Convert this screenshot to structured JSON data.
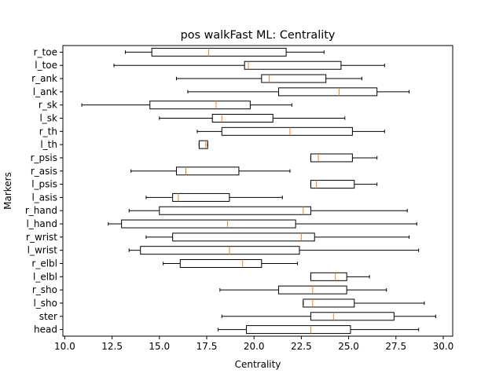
{
  "chart_data": {
    "type": "boxplot",
    "orientation": "horizontal",
    "title": "pos walkFast ML: Centrality",
    "xlabel": "Centrality",
    "ylabel": "Markers",
    "xlim": [
      9.9,
      30.5
    ],
    "xticks": [
      10.0,
      12.5,
      15.0,
      17.5,
      20.0,
      22.5,
      25.0,
      27.5,
      30.0
    ],
    "xtick_labels": [
      "10.0",
      "12.5",
      "15.0",
      "17.5",
      "20.0",
      "22.5",
      "25.0",
      "27.5",
      "30.0"
    ],
    "grid": false,
    "colors": {
      "box": "#000000",
      "median": "#ff7f0e"
    },
    "categories": [
      "head",
      "ster",
      "l_sho",
      "r_sho",
      "l_elbl",
      "r_elbl",
      "l_wrist",
      "r_wrist",
      "l_hand",
      "r_hand",
      "l_asis",
      "l_psis",
      "r_asis",
      "r_psis",
      "l_th",
      "r_th",
      "l_sk",
      "r_sk",
      "l_ank",
      "r_ank",
      "l_toe",
      "r_toe"
    ],
    "boxes": [
      {
        "label": "head",
        "whislo": 18.1,
        "q1": 19.6,
        "med": 23.0,
        "q3": 25.1,
        "whishi": 28.7
      },
      {
        "label": "ster",
        "whislo": 18.3,
        "q1": 23.0,
        "med": 24.2,
        "q3": 27.4,
        "whishi": 29.6
      },
      {
        "label": "l_sho",
        "whislo": 22.6,
        "q1": 22.6,
        "med": 23.1,
        "q3": 25.3,
        "whishi": 29.0
      },
      {
        "label": "r_sho",
        "whislo": 18.2,
        "q1": 21.3,
        "med": 23.1,
        "q3": 24.9,
        "whishi": 27.0
      },
      {
        "label": "l_elbl",
        "whislo": 23.0,
        "q1": 23.0,
        "med": 24.3,
        "q3": 24.9,
        "whishi": 26.1
      },
      {
        "label": "r_elbl",
        "whislo": 15.2,
        "q1": 16.1,
        "med": 19.4,
        "q3": 20.4,
        "whishi": 22.3
      },
      {
        "label": "l_wrist",
        "whislo": 13.4,
        "q1": 14.0,
        "med": 18.7,
        "q3": 22.4,
        "whishi": 28.7
      },
      {
        "label": "r_wrist",
        "whislo": 14.3,
        "q1": 15.7,
        "med": 22.5,
        "q3": 23.2,
        "whishi": 28.2
      },
      {
        "label": "l_hand",
        "whislo": 12.3,
        "q1": 13.0,
        "med": 18.6,
        "q3": 22.2,
        "whishi": 28.6
      },
      {
        "label": "r_hand",
        "whislo": 13.4,
        "q1": 15.0,
        "med": 22.6,
        "q3": 23.0,
        "whishi": 28.1
      },
      {
        "label": "l_asis",
        "whislo": 14.3,
        "q1": 15.7,
        "med": 16.0,
        "q3": 18.7,
        "whishi": 21.5
      },
      {
        "label": "l_psis",
        "whislo": 23.0,
        "q1": 23.0,
        "med": 23.3,
        "q3": 25.3,
        "whishi": 26.5
      },
      {
        "label": "r_asis",
        "whislo": 13.5,
        "q1": 15.9,
        "med": 16.4,
        "q3": 19.2,
        "whishi": 21.9
      },
      {
        "label": "r_psis",
        "whislo": 23.0,
        "q1": 23.0,
        "med": 23.4,
        "q3": 25.2,
        "whishi": 26.5
      },
      {
        "label": "l_th",
        "whislo": 17.1,
        "q1": 17.1,
        "med": 17.45,
        "q3": 17.55,
        "whishi": 17.55
      },
      {
        "label": "r_th",
        "whislo": 17.0,
        "q1": 18.3,
        "med": 21.9,
        "q3": 25.2,
        "whishi": 26.9
      },
      {
        "label": "l_sk",
        "whislo": 15.0,
        "q1": 17.8,
        "med": 18.3,
        "q3": 21.0,
        "whishi": 24.8
      },
      {
        "label": "r_sk",
        "whislo": 10.9,
        "q1": 14.5,
        "med": 18.0,
        "q3": 19.8,
        "whishi": 22.0
      },
      {
        "label": "l_ank",
        "whislo": 16.5,
        "q1": 21.3,
        "med": 24.5,
        "q3": 26.5,
        "whishi": 28.2
      },
      {
        "label": "r_ank",
        "whislo": 15.9,
        "q1": 20.4,
        "med": 20.8,
        "q3": 23.8,
        "whishi": 25.7
      },
      {
        "label": "l_toe",
        "whislo": 12.6,
        "q1": 19.5,
        "med": 19.7,
        "q3": 24.6,
        "whishi": 26.9
      },
      {
        "label": "r_toe",
        "whislo": 13.2,
        "q1": 14.6,
        "med": 17.6,
        "q3": 21.7,
        "whishi": 23.7
      }
    ]
  }
}
